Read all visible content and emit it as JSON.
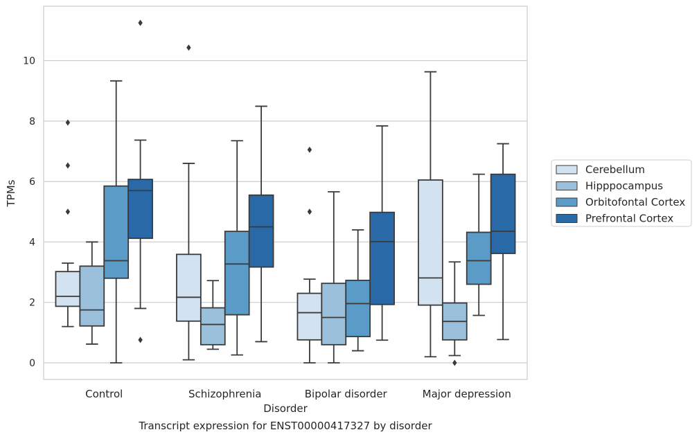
{
  "caption": "Transcript expression for ENST00000417327 by disorder",
  "chart_data": {
    "type": "box",
    "title": "",
    "xlabel": "Disorder",
    "ylabel": "TPMs",
    "ylim": [
      -0.55,
      11.8
    ],
    "yticks": [
      0,
      2,
      4,
      6,
      8,
      10
    ],
    "grid": "horizontal",
    "legend_position": "right",
    "categories": [
      "Control",
      "Schizophrenia",
      "Bipolar disorder",
      "Major depression"
    ],
    "series": [
      {
        "name": "Cerebellum",
        "color": "#d2e2f1",
        "boxes": [
          {
            "whisker_low": 1.2,
            "q1": 1.87,
            "median": 2.2,
            "q3": 3.02,
            "whisker_high": 3.3,
            "outliers": [
              5.0,
              6.53,
              7.95
            ]
          },
          {
            "whisker_low": 0.1,
            "q1": 1.38,
            "median": 2.17,
            "q3": 3.59,
            "whisker_high": 6.6,
            "outliers": [
              10.43
            ]
          },
          {
            "whisker_low": 0.0,
            "q1": 0.76,
            "median": 1.66,
            "q3": 2.3,
            "whisker_high": 2.77,
            "outliers": [
              5.0,
              7.05
            ]
          },
          {
            "whisker_low": 0.2,
            "q1": 1.91,
            "median": 2.81,
            "q3": 6.05,
            "whisker_high": 9.63,
            "outliers": []
          }
        ]
      },
      {
        "name": "Hipppocampus",
        "color": "#9ac0dc",
        "boxes": [
          {
            "whisker_low": 0.62,
            "q1": 1.22,
            "median": 1.75,
            "q3": 3.2,
            "whisker_high": 4.0,
            "outliers": []
          },
          {
            "whisker_low": 0.45,
            "q1": 0.6,
            "median": 1.27,
            "q3": 1.82,
            "whisker_high": 2.72,
            "outliers": []
          },
          {
            "whisker_low": 0.0,
            "q1": 0.6,
            "median": 1.5,
            "q3": 2.63,
            "whisker_high": 5.66,
            "outliers": []
          },
          {
            "whisker_low": 0.24,
            "q1": 0.76,
            "median": 1.37,
            "q3": 1.98,
            "whisker_high": 3.34,
            "outliers": [
              0.0
            ]
          }
        ]
      },
      {
        "name": "Orbitofontal Cortex",
        "color": "#5b9bc8",
        "boxes": [
          {
            "whisker_low": 0.0,
            "q1": 2.8,
            "median": 3.38,
            "q3": 5.85,
            "whisker_high": 9.33,
            "outliers": []
          },
          {
            "whisker_low": 0.26,
            "q1": 1.59,
            "median": 3.27,
            "q3": 4.35,
            "whisker_high": 7.35,
            "outliers": []
          },
          {
            "whisker_low": 0.4,
            "q1": 0.87,
            "median": 1.96,
            "q3": 2.73,
            "whisker_high": 4.4,
            "outliers": []
          },
          {
            "whisker_low": 1.57,
            "q1": 2.6,
            "median": 3.38,
            "q3": 4.32,
            "whisker_high": 6.24,
            "outliers": []
          }
        ]
      },
      {
        "name": "Prefrontal Cortex",
        "color": "#2a69a8",
        "boxes": [
          {
            "whisker_low": 1.8,
            "q1": 4.12,
            "median": 5.7,
            "q3": 6.07,
            "whisker_high": 7.37,
            "outliers": [
              0.76,
              11.25
            ]
          },
          {
            "whisker_low": 0.7,
            "q1": 3.17,
            "median": 4.5,
            "q3": 5.55,
            "whisker_high": 8.49,
            "outliers": []
          },
          {
            "whisker_low": 0.75,
            "q1": 1.93,
            "median": 4.01,
            "q3": 4.98,
            "whisker_high": 7.84,
            "outliers": []
          },
          {
            "whisker_low": 0.77,
            "q1": 3.62,
            "median": 4.35,
            "q3": 6.24,
            "whisker_high": 7.25,
            "outliers": []
          }
        ]
      }
    ]
  }
}
